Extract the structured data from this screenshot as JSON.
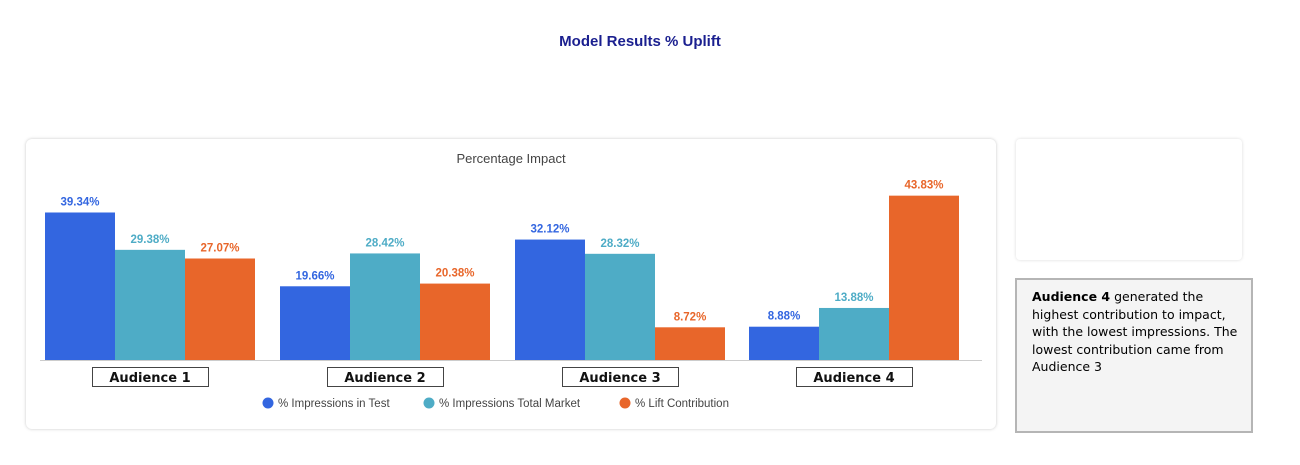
{
  "page_title": "Model Results % Uplift",
  "note": {
    "bold": "Audience 4",
    "text": " generated the highest contribution to impact, with the lowest impressions.  The lowest contribution came from Audience 3"
  },
  "chart_data": {
    "type": "bar",
    "title": "Percentage Impact",
    "categories": [
      "Audience 1",
      "Audience 2",
      "Audience 3",
      "Audience 4"
    ],
    "series": [
      {
        "name": "% Impressions in Test",
        "values": [
          39.34,
          19.66,
          32.12,
          8.88
        ],
        "color": "#3366e0"
      },
      {
        "name": "% Impressions Total Market",
        "values": [
          29.38,
          28.42,
          28.32,
          13.88
        ],
        "color": "#4eacc6"
      },
      {
        "name": "% Lift Contribution",
        "values": [
          27.07,
          20.38,
          8.72,
          43.83
        ],
        "color": "#e8662a"
      }
    ],
    "data_labels": [
      [
        "39.34%",
        "19.66%",
        "32.12%",
        "8.88%"
      ],
      [
        "29.38%",
        "28.42%",
        "28.32%",
        "13.88%"
      ],
      [
        "27.07%",
        "20.38%",
        "8.72%",
        "43.83%"
      ]
    ],
    "ylim": [
      0,
      45
    ],
    "grid": false,
    "legend_position": "bottom"
  }
}
